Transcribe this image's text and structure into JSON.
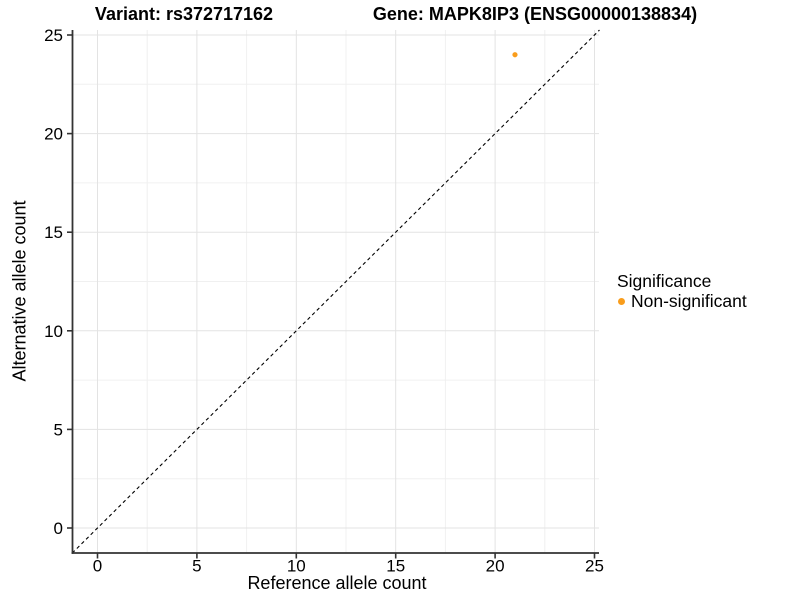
{
  "chart_data": {
    "type": "scatter",
    "title_left": "Variant: rs372717162",
    "title_right": "Gene: MAPK8IP3 (ENSG00000138834)",
    "xlabel": "Reference allele count",
    "ylabel": "Alternative allele count",
    "xlim": [
      -1.27,
      25.25
    ],
    "ylim": [
      -1.27,
      25.25
    ],
    "x_ticks": [
      0,
      5,
      10,
      15,
      20,
      25
    ],
    "y_ticks": [
      0,
      5,
      10,
      15,
      20,
      25
    ],
    "x_minor": [
      2.5,
      7.5,
      12.5,
      17.5,
      22.5
    ],
    "y_minor": [
      2.5,
      7.5,
      12.5,
      17.5,
      22.5
    ],
    "grid": "major+minor",
    "identity_line": {
      "equation": "y = x",
      "style": "dashed",
      "color": "#000000"
    },
    "series": [
      {
        "name": "Non-significant",
        "color": "#F99D1C",
        "points": [
          [
            21,
            24
          ]
        ]
      }
    ],
    "legend": {
      "title": "Significance",
      "position": "right",
      "items": [
        {
          "label": "Non-significant",
          "color": "#F99D1C"
        }
      ]
    }
  },
  "style": {
    "axis_color": "#333333",
    "tick_label_color": "#000000",
    "grid_major": "#E3E3E3",
    "grid_minor": "#F0F0F0",
    "background": "#FFFFFF"
  }
}
